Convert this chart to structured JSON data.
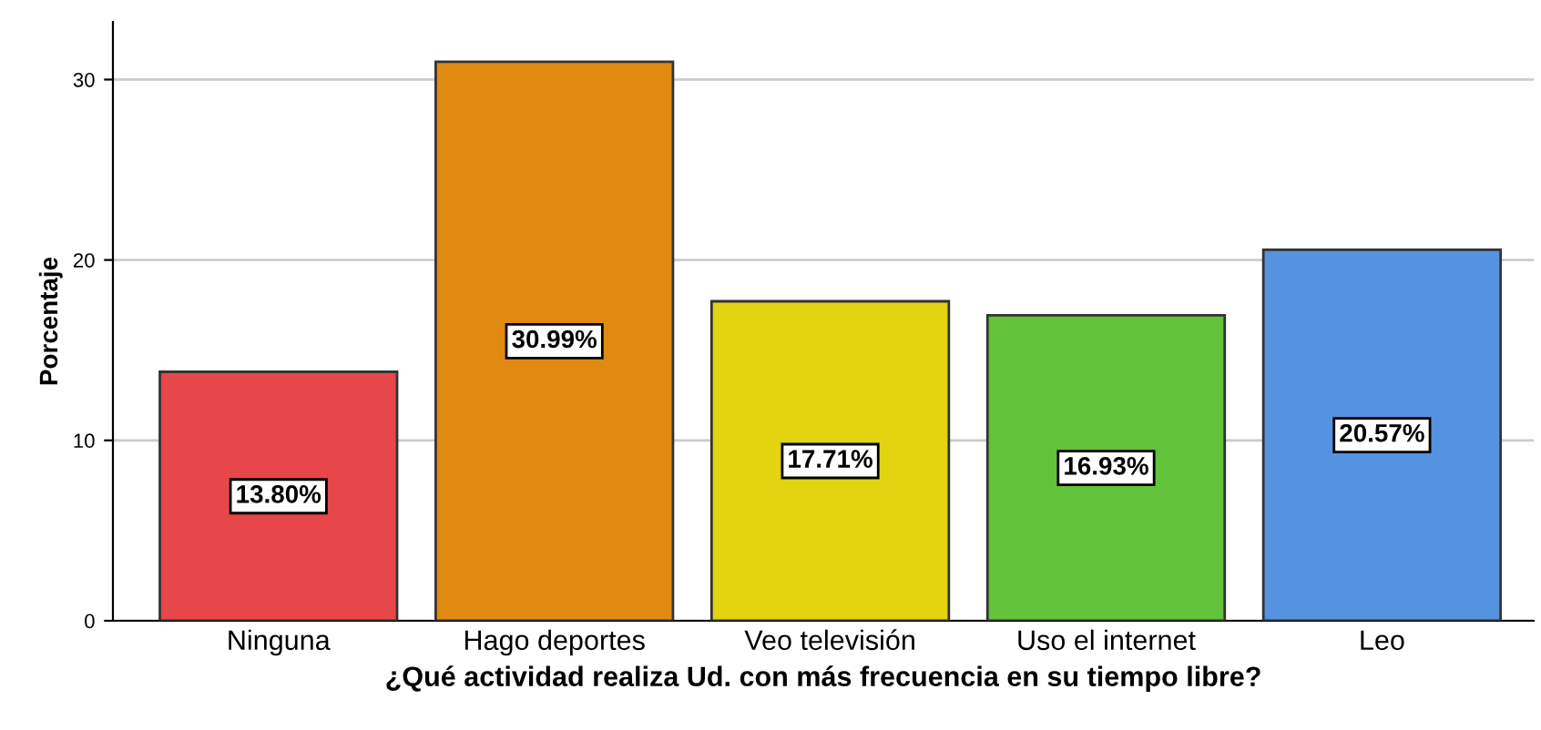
{
  "chart_data": {
    "type": "bar",
    "xlabel": "¿Qué actividad realiza Ud. con más frecuencia en su tiempo libre?",
    "ylabel": "Porcentaje",
    "categories": [
      "Ninguna",
      "Hago deportes",
      "Veo televisión",
      "Uso el internet",
      "Leo"
    ],
    "values": [
      13.8,
      30.99,
      17.71,
      16.93,
      20.57
    ],
    "colors": [
      "#e8474a",
      "#e08a12",
      "#e3d310",
      "#62c23a",
      "#5493e0"
    ],
    "value_labels": [
      "13.80%",
      "30.99%",
      "17.71%",
      "16.93%",
      "20.57%"
    ],
    "ylim": [
      0,
      33.2
    ],
    "yticks": [
      0,
      10,
      20,
      30
    ],
    "grid": "y",
    "legend": false
  }
}
